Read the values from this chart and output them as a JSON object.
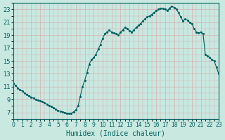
{
  "xlabel": "Humidex (Indice chaleur)",
  "ylabel": "",
  "bg_color": "#c8e8e0",
  "grid_color": "#d4b0b0",
  "line_color": "#006060",
  "xlim": [
    0,
    23
  ],
  "ylim": [
    6,
    24
  ],
  "xticks": [
    0,
    1,
    2,
    3,
    4,
    5,
    6,
    7,
    8,
    9,
    10,
    11,
    12,
    13,
    14,
    15,
    16,
    17,
    18,
    19,
    20,
    21,
    22,
    23
  ],
  "yticks": [
    7,
    9,
    11,
    13,
    15,
    17,
    19,
    21,
    23
  ],
  "x": [
    0.0,
    0.25,
    0.5,
    0.75,
    1.0,
    1.25,
    1.5,
    1.75,
    2.0,
    2.25,
    2.5,
    2.75,
    3.0,
    3.25,
    3.5,
    3.75,
    4.0,
    4.25,
    4.5,
    4.75,
    5.0,
    5.25,
    5.5,
    5.75,
    6.0,
    6.25,
    6.5,
    6.75,
    7.0,
    7.25,
    7.5,
    7.75,
    8.0,
    8.25,
    8.5,
    8.75,
    9.0,
    9.25,
    9.5,
    9.75,
    10.0,
    10.25,
    10.5,
    10.75,
    11.0,
    11.25,
    11.5,
    11.75,
    12.0,
    12.25,
    12.5,
    12.75,
    13.0,
    13.25,
    13.5,
    13.75,
    14.0,
    14.25,
    14.5,
    14.75,
    15.0,
    15.25,
    15.5,
    15.75,
    16.0,
    16.25,
    16.5,
    16.75,
    17.0,
    17.25,
    17.5,
    17.75,
    18.0,
    18.25,
    18.5,
    18.75,
    19.0,
    19.25,
    19.5,
    19.75,
    20.0,
    20.25,
    20.5,
    20.75,
    21.0,
    21.25,
    21.5,
    21.75,
    22.0,
    22.25,
    22.5,
    22.75,
    23.0
  ],
  "y": [
    11.5,
    11.2,
    10.8,
    10.5,
    10.3,
    10.0,
    9.8,
    9.6,
    9.4,
    9.2,
    9.0,
    8.9,
    8.8,
    8.7,
    8.5,
    8.3,
    8.1,
    7.9,
    7.7,
    7.5,
    7.3,
    7.2,
    7.1,
    7.0,
    6.9,
    6.85,
    6.9,
    7.1,
    7.4,
    8.0,
    9.5,
    11.0,
    12.0,
    13.2,
    14.5,
    15.2,
    15.5,
    16.0,
    16.8,
    17.5,
    18.5,
    19.2,
    19.5,
    19.8,
    19.5,
    19.3,
    19.2,
    19.0,
    19.5,
    19.8,
    20.2,
    20.0,
    19.7,
    19.5,
    19.8,
    20.2,
    20.5,
    20.8,
    21.2,
    21.5,
    21.8,
    22.0,
    22.2,
    22.5,
    22.8,
    23.0,
    23.2,
    23.1,
    23.0,
    22.8,
    23.2,
    23.5,
    23.3,
    23.0,
    22.5,
    21.8,
    21.2,
    21.5,
    21.3,
    21.0,
    20.8,
    20.0,
    19.5,
    19.3,
    19.5,
    19.2,
    16.0,
    15.8,
    15.5,
    15.2,
    15.0,
    14.0,
    13.0
  ]
}
